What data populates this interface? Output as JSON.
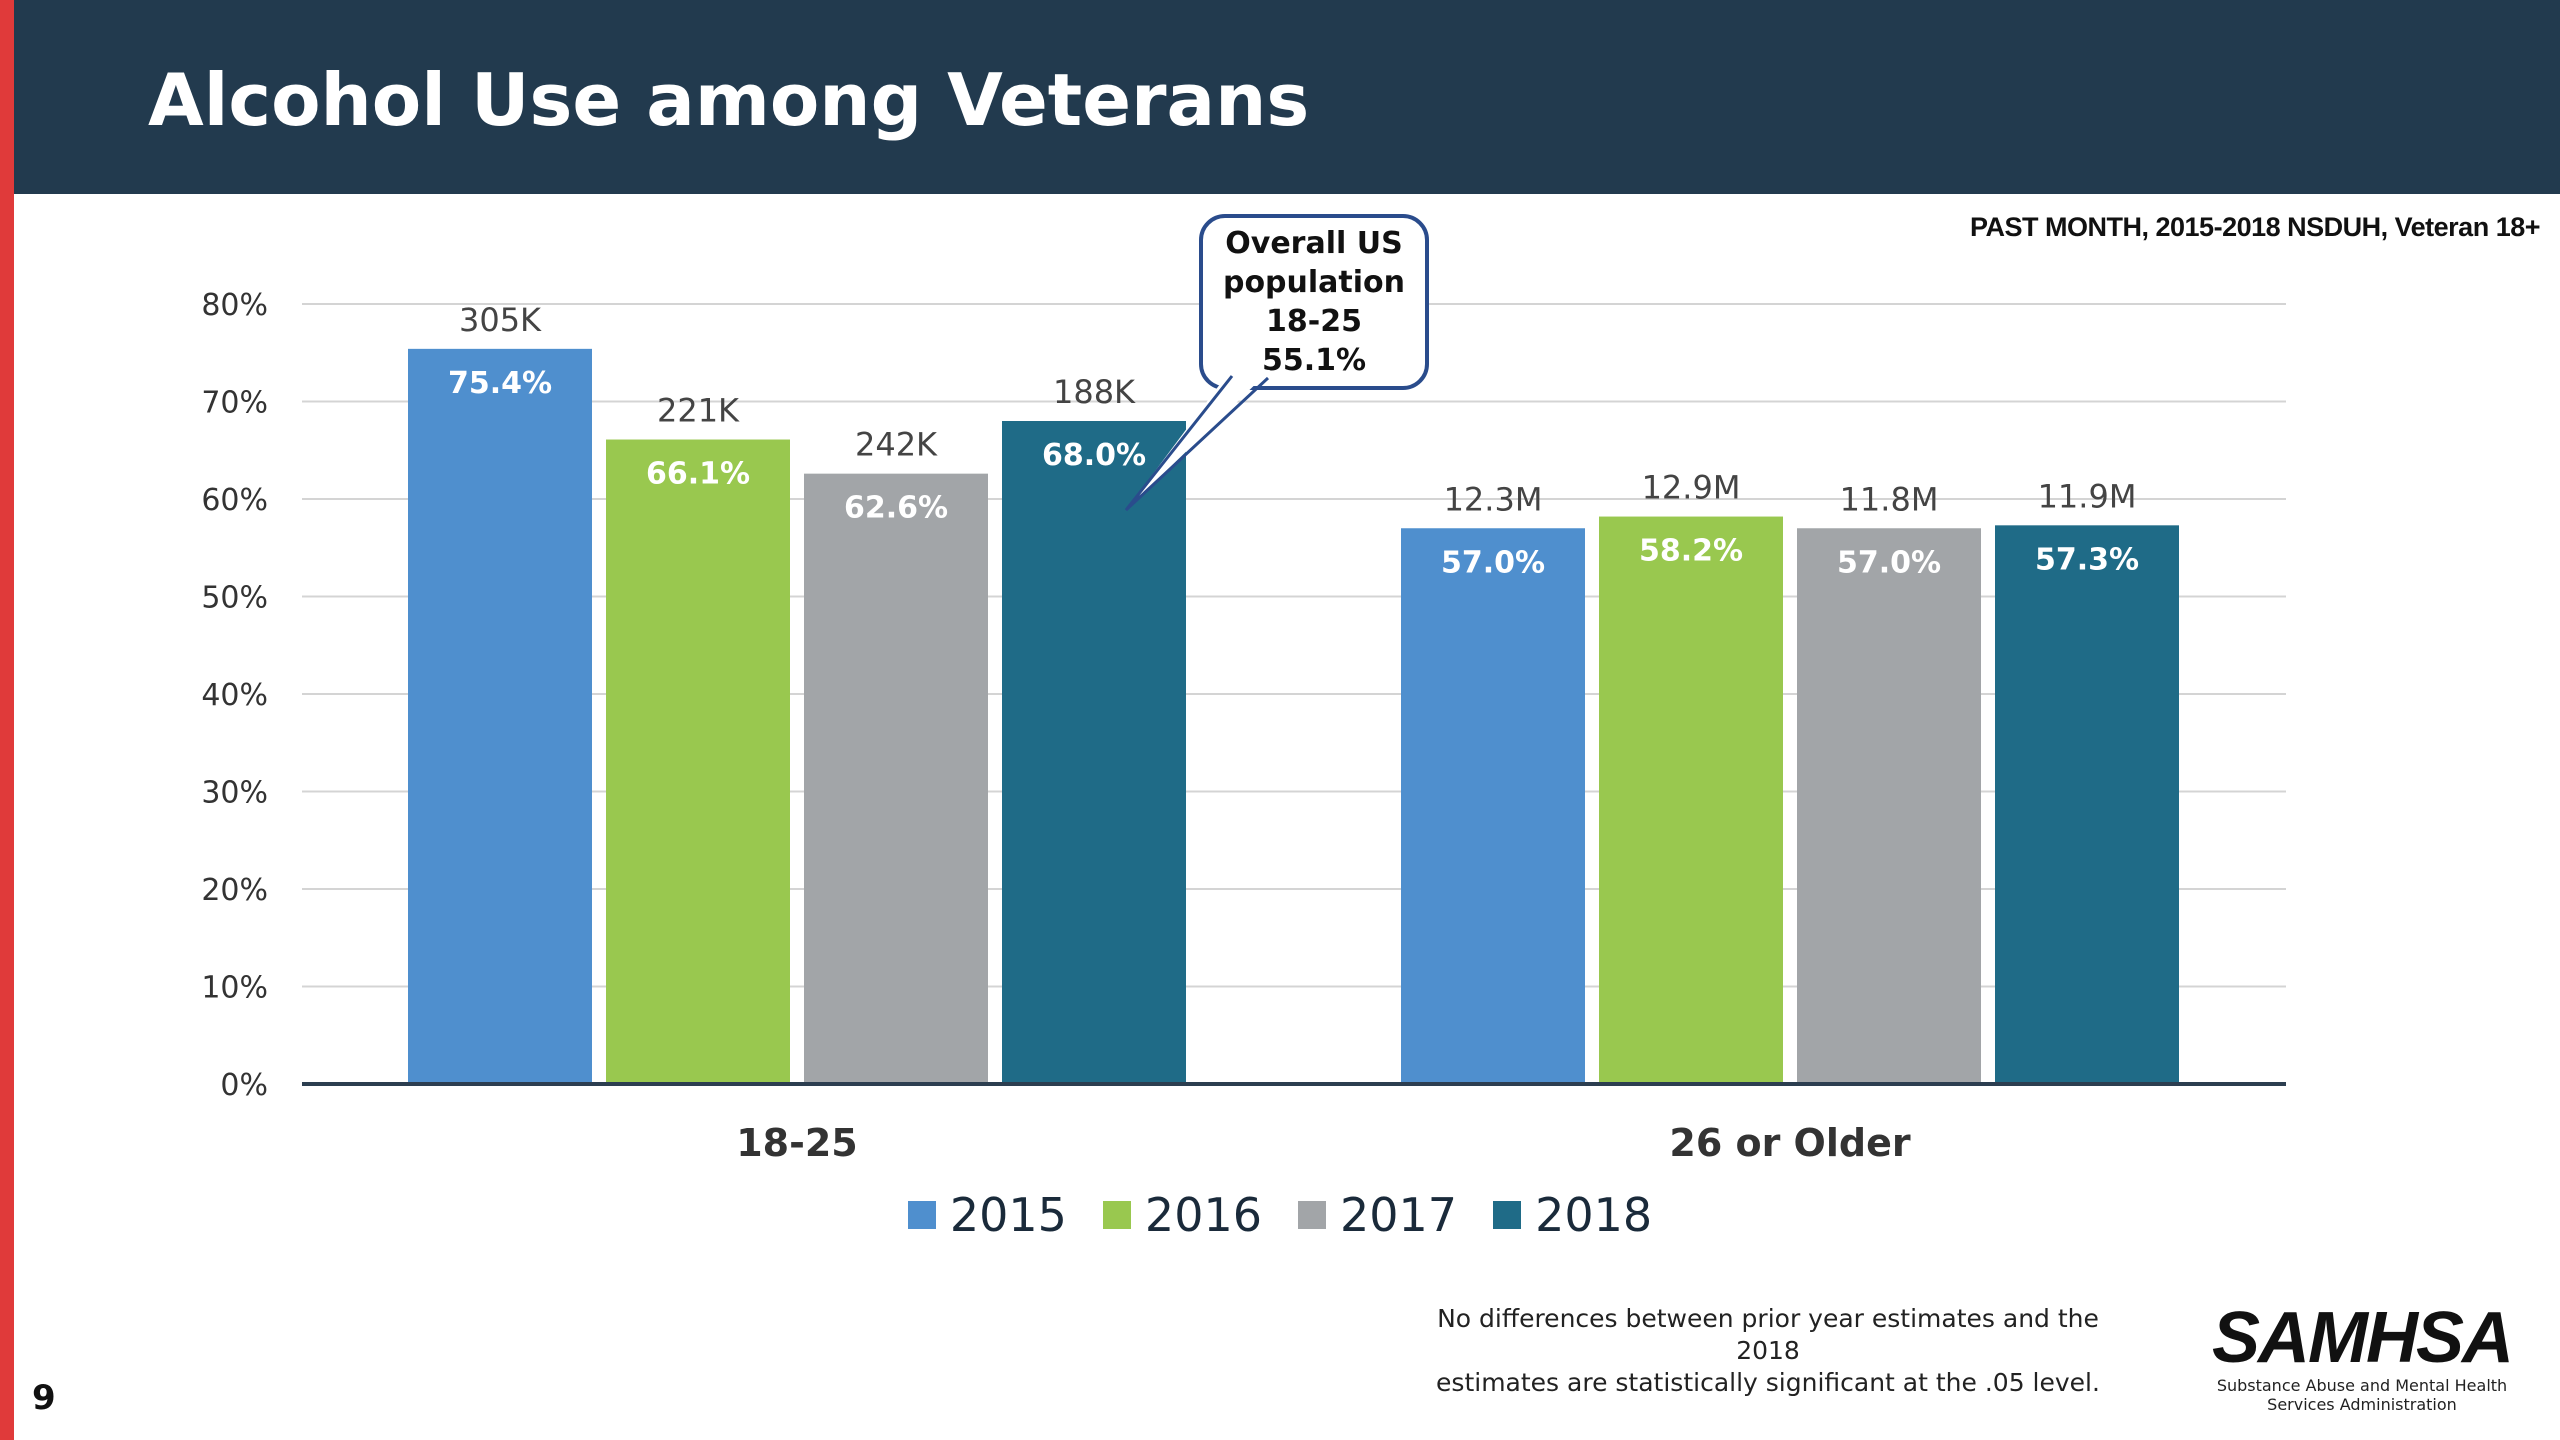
{
  "slide": {
    "title": "Alcohol Use among Veterans",
    "subtitle": "PAST MONTH, 2015-2018  NSDUH, Veteran 18+",
    "page_number": "9",
    "footnote_line1": "No differences between prior year estimates and the 2018",
    "footnote_line2": "estimates are statistically significant at the .05 level.",
    "logo_text": "SAMHSA",
    "logo_subtitle_line1": "Substance Abuse and Mental Health",
    "logo_subtitle_line2": "Services Administration",
    "callout": {
      "line1": "Overall US",
      "line2": "population",
      "line3": "18-25",
      "line4": "55.1%"
    }
  },
  "colors": {
    "header_bg": "#223a4e",
    "accent_red": "#e03a3a",
    "series": [
      "#4f8fce",
      "#99c84f",
      "#a2a5a8",
      "#1f6b87"
    ]
  },
  "chart_data": {
    "type": "bar",
    "title": "",
    "xlabel": "",
    "ylabel": "",
    "ylim": [
      0,
      80
    ],
    "y_ticks": [
      "0%",
      "10%",
      "20%",
      "30%",
      "40%",
      "50%",
      "60%",
      "70%",
      "80%"
    ],
    "grid": true,
    "legend_position": "bottom",
    "categories": [
      "18-25",
      "26 or Older"
    ],
    "series": [
      {
        "name": "2015",
        "values": [
          75.4,
          57.0
        ],
        "labels": [
          "75.4%",
          "57.0%"
        ],
        "counts": [
          "305K",
          "12.3M"
        ]
      },
      {
        "name": "2016",
        "values": [
          66.1,
          58.2
        ],
        "labels": [
          "66.1%",
          "58.2%"
        ],
        "counts": [
          "221K",
          "12.9M"
        ]
      },
      {
        "name": "2017",
        "values": [
          62.6,
          57.0
        ],
        "labels": [
          "62.6%",
          "57.0%"
        ],
        "counts": [
          "242K",
          "11.8M"
        ]
      },
      {
        "name": "2018",
        "values": [
          68.0,
          57.3
        ],
        "labels": [
          "68.0%",
          "57.3%"
        ],
        "counts": [
          "188K",
          "11.9M"
        ]
      }
    ]
  }
}
